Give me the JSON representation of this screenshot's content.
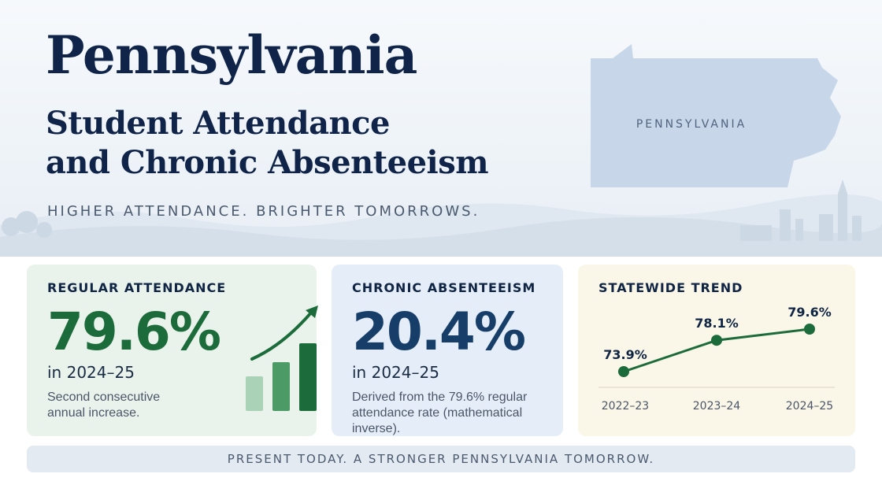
{
  "header": {
    "title": "Pennsylvania",
    "subtitle_line1": "Student Attendance",
    "subtitle_line2": "and Chronic Absenteeism",
    "tagline": "HIGHER ATTENDANCE. BRIGHTER TOMORROWS.",
    "map_label": "PENNSYLVANIA"
  },
  "cards": {
    "attendance": {
      "label": "REGULAR ATTENDANCE",
      "value": "79.6%",
      "period": "in 2024–25",
      "note": "Second consecutive annual increase.",
      "icon": "rising-bar-chart-icon"
    },
    "absenteeism": {
      "label": "CHRONIC ABSENTEEISM",
      "value": "20.4%",
      "period": "in 2024–25",
      "note": "Derived from the 79.6% regular attendance rate (mathematical inverse)."
    },
    "trend": {
      "label": "STATEWIDE TREND"
    }
  },
  "chart_data": {
    "type": "line",
    "title": "STATEWIDE TREND",
    "categories": [
      "2022–23",
      "2023–24",
      "2024–25"
    ],
    "values": [
      73.9,
      78.1,
      79.6
    ],
    "data_labels": [
      "73.9%",
      "78.1%",
      "79.6%"
    ],
    "ylim": [
      70,
      82
    ],
    "grid": false,
    "color": "#1c6b3a"
  },
  "footer": {
    "text": "PRESENT TODAY. A STRONGER PENNSYLVANIA TOMORROW."
  },
  "colors": {
    "navy": "#0f2448",
    "green": "#1c6b3a",
    "blue": "#173e68",
    "map": "#c7d6e8"
  }
}
